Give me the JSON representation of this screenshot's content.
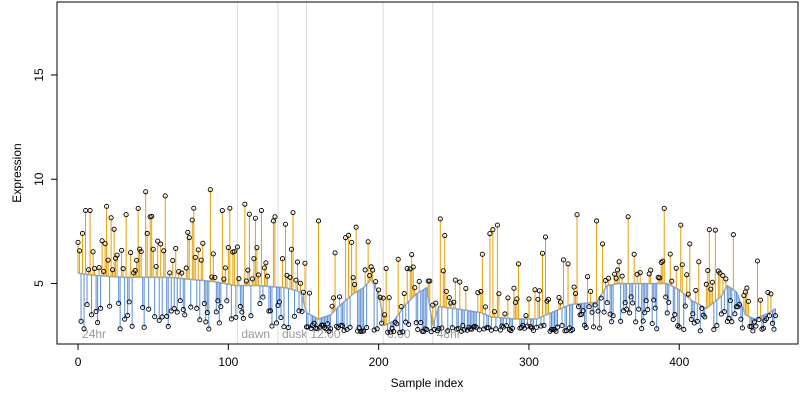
{
  "chart_data": {
    "type": "scatter",
    "title": "",
    "xlabel": "Sample index",
    "ylabel": "Expression",
    "xlim": [
      -14,
      479
    ],
    "ylim": [
      2.1,
      18.5
    ],
    "xticks": [
      0,
      100,
      200,
      300,
      400
    ],
    "xtick_labels": [
      "0",
      "100",
      "200",
      "300",
      "400"
    ],
    "yticks": [
      5,
      10,
      15
    ],
    "ytick_labels": [
      "5",
      "10",
      "15"
    ],
    "grid": false,
    "legend": "none",
    "n_samples": 465,
    "colors": {
      "above_baseline": "#E69F00",
      "below_baseline": "#5B8FD6",
      "baseline": "#8FB0E3",
      "points": "#000000",
      "section_lines": "#dcdcdc",
      "section_text": "#9a9a9a"
    },
    "sections": [
      {
        "x": 0,
        "label": "24hr"
      },
      {
        "x": 106,
        "label": "dawn"
      },
      {
        "x": 133,
        "label": "dusk"
      },
      {
        "x": 152,
        "label": "12:00"
      },
      {
        "x": 203,
        "label": "0:00"
      },
      {
        "x": 236,
        "label": "48hr"
      }
    ],
    "baseline": [
      [
        0,
        5.5
      ],
      [
        10,
        5.4
      ],
      [
        30,
        5.3
      ],
      [
        60,
        5.3
      ],
      [
        90,
        5.1
      ],
      [
        105,
        4.9
      ],
      [
        120,
        4.9
      ],
      [
        138,
        4.8
      ],
      [
        148,
        4.6
      ],
      [
        152,
        3.6
      ],
      [
        160,
        3.3
      ],
      [
        168,
        3.5
      ],
      [
        175,
        4.0
      ],
      [
        183,
        4.5
      ],
      [
        190,
        4.8
      ],
      [
        195,
        5.2
      ],
      [
        200,
        4.5
      ],
      [
        204,
        3.0
      ],
      [
        210,
        3.2
      ],
      [
        218,
        4.0
      ],
      [
        225,
        4.5
      ],
      [
        232,
        4.8
      ],
      [
        236,
        3.0
      ],
      [
        240,
        3.9
      ],
      [
        250,
        3.8
      ],
      [
        260,
        3.7
      ],
      [
        268,
        3.6
      ],
      [
        275,
        3.4
      ],
      [
        290,
        3.3
      ],
      [
        305,
        3.3
      ],
      [
        318,
        3.7
      ],
      [
        328,
        4.0
      ],
      [
        345,
        4.1
      ],
      [
        352,
        4.9
      ],
      [
        360,
        5.0
      ],
      [
        380,
        5.0
      ],
      [
        392,
        5.0
      ],
      [
        400,
        4.7
      ],
      [
        408,
        4.2
      ],
      [
        418,
        3.8
      ],
      [
        428,
        4.4
      ],
      [
        432,
        4.9
      ],
      [
        438,
        4.6
      ],
      [
        444,
        3.5
      ],
      [
        450,
        3.3
      ],
      [
        460,
        3.6
      ],
      [
        464,
        3.8
      ]
    ],
    "segments": [
      {
        "start": 0,
        "end": 105,
        "low_min": 2.8,
        "low_max": 4.3,
        "high_max": 9.6,
        "high_bias": 0.55
      },
      {
        "start": 106,
        "end": 151,
        "low_min": 2.8,
        "low_max": 4.5,
        "high_max": 8.8,
        "high_bias": 0.5
      },
      {
        "start": 152,
        "end": 203,
        "low_min": 2.7,
        "low_max": 3.1,
        "high_max": 8.0,
        "high_bias": 0.3
      },
      {
        "start": 204,
        "end": 235,
        "low_min": 2.6,
        "low_max": 3.2,
        "high_max": 7.0,
        "high_bias": 0.35
      },
      {
        "start": 236,
        "end": 330,
        "low_min": 2.7,
        "low_max": 3.0,
        "high_max": 8.1,
        "high_bias": 0.35
      },
      {
        "start": 331,
        "end": 464,
        "low_min": 2.7,
        "low_max": 4.4,
        "high_max": 8.6,
        "high_bias": 0.45
      }
    ],
    "highlights": [
      [
        3,
        7.4
      ],
      [
        5,
        8.5
      ],
      [
        8,
        8.5
      ],
      [
        19,
        8.7
      ],
      [
        24,
        7.6
      ],
      [
        32,
        8.3
      ],
      [
        40,
        8.6
      ],
      [
        45,
        9.4
      ],
      [
        48,
        8.2
      ],
      [
        58,
        9.2
      ],
      [
        74,
        7.2
      ],
      [
        88,
        9.5
      ],
      [
        96,
        8.5
      ],
      [
        111,
        8.8
      ],
      [
        122,
        8.5
      ],
      [
        130,
        8.0
      ],
      [
        131,
        8.2
      ],
      [
        143,
        8.4
      ],
      [
        160,
        8.0
      ],
      [
        185,
        7.7
      ],
      [
        193,
        7.0
      ],
      [
        241,
        8.1
      ],
      [
        244,
        7.3
      ],
      [
        279,
        7.8
      ],
      [
        332,
        8.3
      ],
      [
        345,
        8.0
      ],
      [
        366,
        8.2
      ],
      [
        390,
        8.6
      ],
      [
        407,
        6.9
      ]
    ]
  }
}
